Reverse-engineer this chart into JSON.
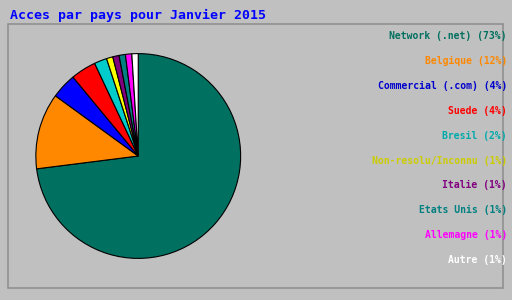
{
  "title": "Acces par pays pour Janvier 2015",
  "slices": [
    {
      "label": "Network (.net)",
      "pct": 73,
      "color": "#007060"
    },
    {
      "label": "Belgique",
      "pct": 12,
      "color": "#ff8800"
    },
    {
      "label": "Commercial (.com)",
      "pct": 4,
      "color": "#0000ff"
    },
    {
      "label": "Suede",
      "pct": 4,
      "color": "#ff0000"
    },
    {
      "label": "Bresil",
      "pct": 2,
      "color": "#00cccc"
    },
    {
      "label": "Non-resolu/Inconnu",
      "pct": 1,
      "color": "#ffff00"
    },
    {
      "label": "Italie",
      "pct": 1,
      "color": "#800080"
    },
    {
      "label": "Etats Unis",
      "pct": 1,
      "color": "#008080"
    },
    {
      "label": "Allemagne",
      "pct": 1,
      "color": "#ff00ff"
    },
    {
      "label": "Autre",
      "pct": 1,
      "color": "#ffffff"
    }
  ],
  "legend_labels": [
    "Network (.net) (73%)",
    "Belgique (12%)",
    "Commercial (.com) (4%)",
    "Suede (4%)",
    "Bresil (2%)",
    "Non-resolu/Inconnu (1%)",
    "Italie (1%)",
    "Etats Unis (1%)",
    "Allemagne (1%)",
    "Autre (1%)"
  ],
  "legend_text_colors": [
    "#007060",
    "#ff8800",
    "#0000cc",
    "#ff0000",
    "#00aaaa",
    "#cccc00",
    "#800080",
    "#008080",
    "#ff00ff",
    "#ffffff"
  ],
  "bg_color": "#c0c0c0",
  "inner_bg": "#c8c8c8",
  "title_color": "#0000ff",
  "title_fontsize": 9.5,
  "border_color": "#909090"
}
